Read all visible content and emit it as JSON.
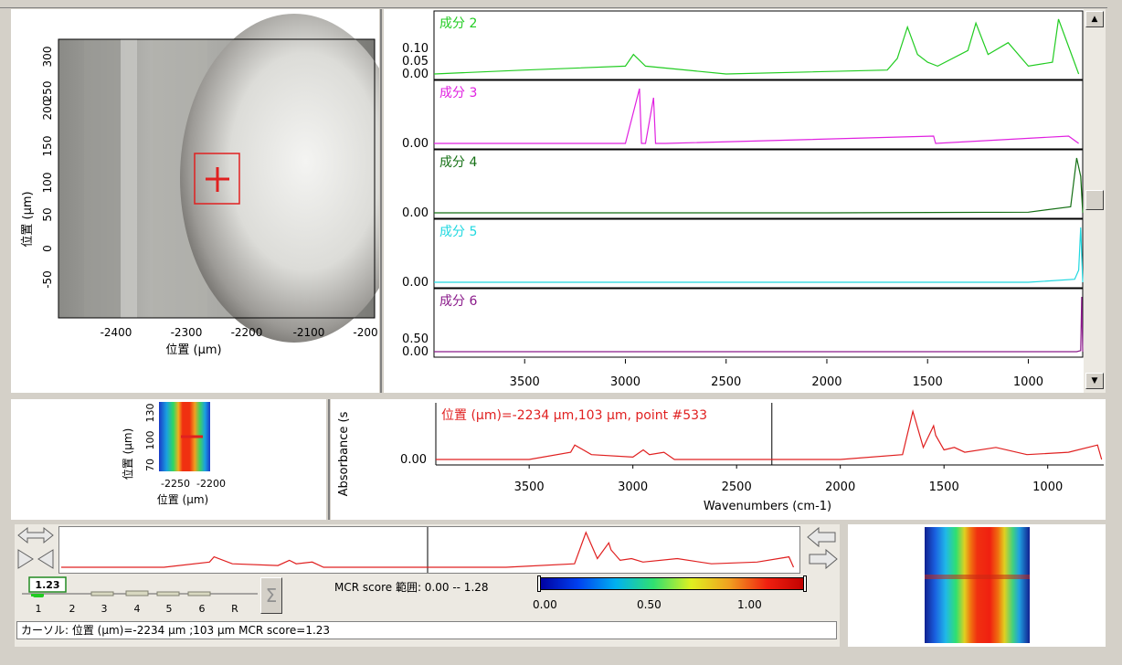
{
  "colors": {
    "red": "#e02020",
    "green": "#22cc22",
    "magenta": "#e020e0",
    "darkgreen": "#157015",
    "cyan": "#20d8e0",
    "purple": "#8a1a8a"
  },
  "image_panel": {
    "ylabel": "位置 (µm)",
    "xlabel": "位置 (µm)",
    "yticks": [
      "300",
      "250",
      "200",
      "150",
      "100",
      "50",
      "0",
      "-50"
    ],
    "xticks": [
      "-2400",
      "-2300",
      "-2200",
      "-2100",
      "-200"
    ]
  },
  "components": [
    {
      "label": "成分 2",
      "color": "#22cc22",
      "yticks": [
        "0.10",
        "0.05",
        "0.00"
      ]
    },
    {
      "label": "成分 3",
      "color": "#e020e0",
      "yticks": [
        "0.00"
      ]
    },
    {
      "label": "成分 4",
      "color": "#157015",
      "yticks": [
        "0.00"
      ]
    },
    {
      "label": "成分 5",
      "color": "#20d8e0",
      "yticks": [
        "0.00"
      ]
    },
    {
      "label": "成分 6",
      "color": "#8a1a8a",
      "yticks": [
        "0.50",
        "0.00"
      ]
    }
  ],
  "component_xticks": [
    "3500",
    "3000",
    "2500",
    "2000",
    "1500",
    "1000"
  ],
  "mini_map": {
    "ylabel": "位置 (µm)",
    "yticks": [
      "130",
      "100",
      "70"
    ],
    "xticks": [
      "-2250",
      "-2200"
    ],
    "xlabel": "位置 (µm)"
  },
  "spectrum": {
    "ylabel": "Absorbance (s",
    "ytick": "0.00",
    "cursor_label": "位置 (µm)=-2234 µm,103 µm, point #533",
    "xticks": [
      "3500",
      "3000",
      "2500",
      "2000",
      "1500",
      "1000"
    ],
    "xlabel": "Wavenumbers (cm-1)"
  },
  "tabs": {
    "value": "1.23",
    "labels": [
      "1",
      "2",
      "3",
      "4",
      "5",
      "6",
      "R"
    ]
  },
  "score": {
    "label": "MCR score 範囲: 0.00 -- 1.28",
    "ticks": [
      "0.00",
      "0.50",
      "1.00"
    ]
  },
  "status": "カーソル: 位置 (µm)=-2234 µm ;103 µm  MCR score=1.23",
  "chart_data": [
    {
      "type": "line",
      "title": "成分 2",
      "x": [
        3950,
        3500,
        3000,
        2960,
        2900,
        2500,
        1700,
        1650,
        1600,
        1550,
        1500,
        1450,
        1300,
        1260,
        1200,
        1100,
        1000,
        880,
        850,
        750
      ],
      "y": [
        0.0,
        0.01,
        0.02,
        0.05,
        0.02,
        0.0,
        0.01,
        0.04,
        0.12,
        0.05,
        0.03,
        0.02,
        0.06,
        0.13,
        0.05,
        0.08,
        0.02,
        0.03,
        0.14,
        0.0
      ]
    },
    {
      "type": "line",
      "title": "成分 3",
      "x": [
        3950,
        3000,
        2930,
        2920,
        2900,
        2860,
        2850,
        2800,
        1470,
        1460,
        800,
        750
      ],
      "y": [
        0.0,
        0.0,
        0.6,
        0.0,
        0.0,
        0.5,
        0.0,
        0.0,
        0.08,
        0.0,
        0.08,
        0.0
      ]
    },
    {
      "type": "line",
      "title": "成分 4",
      "x": [
        3950,
        2000,
        1000,
        790,
        760,
        740,
        730
      ],
      "y": [
        0.0,
        0.0,
        0.01,
        0.1,
        0.9,
        0.6,
        0.0
      ]
    },
    {
      "type": "line",
      "title": "成分 5",
      "x": [
        3950,
        1000,
        770,
        750,
        740,
        730
      ],
      "y": [
        0.0,
        0.0,
        0.05,
        0.2,
        0.9,
        0.0
      ]
    },
    {
      "type": "line",
      "title": "成分 6",
      "x": [
        3950,
        1000,
        760,
        740,
        735,
        730
      ],
      "y": [
        0.0,
        0.0,
        0.0,
        0.02,
        1.0,
        0.0
      ]
    },
    {
      "type": "line",
      "title": "位置 (µm)=-2234 µm,103 µm, point #533",
      "xlabel": "Wavenumbers (cm-1)",
      "x": [
        3950,
        3500,
        3300,
        3280,
        3200,
        3000,
        2950,
        2920,
        2850,
        2800,
        2500,
        2000,
        1700,
        1650,
        1600,
        1550,
        1540,
        1500,
        1450,
        1400,
        1250,
        1100,
        900,
        760,
        740
      ],
      "y": [
        0.0,
        0.0,
        0.03,
        0.06,
        0.02,
        0.01,
        0.04,
        0.02,
        0.03,
        0.0,
        0.0,
        0.0,
        0.02,
        0.2,
        0.05,
        0.14,
        0.1,
        0.04,
        0.05,
        0.03,
        0.05,
        0.02,
        0.03,
        0.06,
        0.0
      ]
    }
  ]
}
